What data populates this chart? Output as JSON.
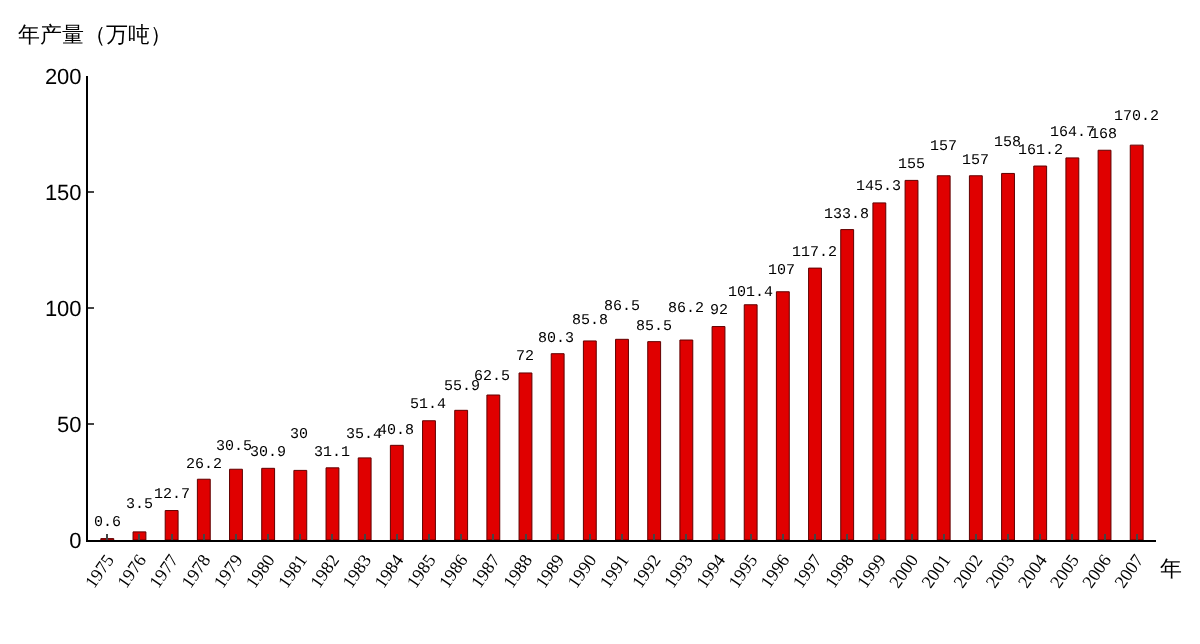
{
  "chart_data": {
    "type": "bar",
    "ylabel": "年产量（万吨）",
    "xlabel": "年",
    "categories": [
      "1975",
      "1976",
      "1977",
      "1978",
      "1979",
      "1980",
      "1981",
      "1982",
      "1983",
      "1984",
      "1985",
      "1986",
      "1987",
      "1988",
      "1989",
      "1990",
      "1991",
      "1992",
      "1993",
      "1994",
      "1995",
      "1996",
      "1997",
      "1998",
      "1999",
      "2000",
      "2001",
      "2002",
      "2003",
      "2004",
      "2005",
      "2006",
      "2007"
    ],
    "values": [
      0.6,
      3.5,
      12.7,
      26.2,
      30.5,
      30.9,
      30,
      31.1,
      35.4,
      40.8,
      51.4,
      55.9,
      62.5,
      72,
      80.3,
      85.8,
      86.5,
      85.5,
      86.2,
      92,
      101.4,
      107,
      117.2,
      133.8,
      145.3,
      155,
      157,
      157,
      158,
      161.2,
      164.7,
      168,
      170.2
    ],
    "color": "#e00000",
    "ylim": [
      0,
      200
    ],
    "yticks": [
      0,
      50,
      100,
      150,
      200
    ],
    "grid": false,
    "data_labels": true
  }
}
